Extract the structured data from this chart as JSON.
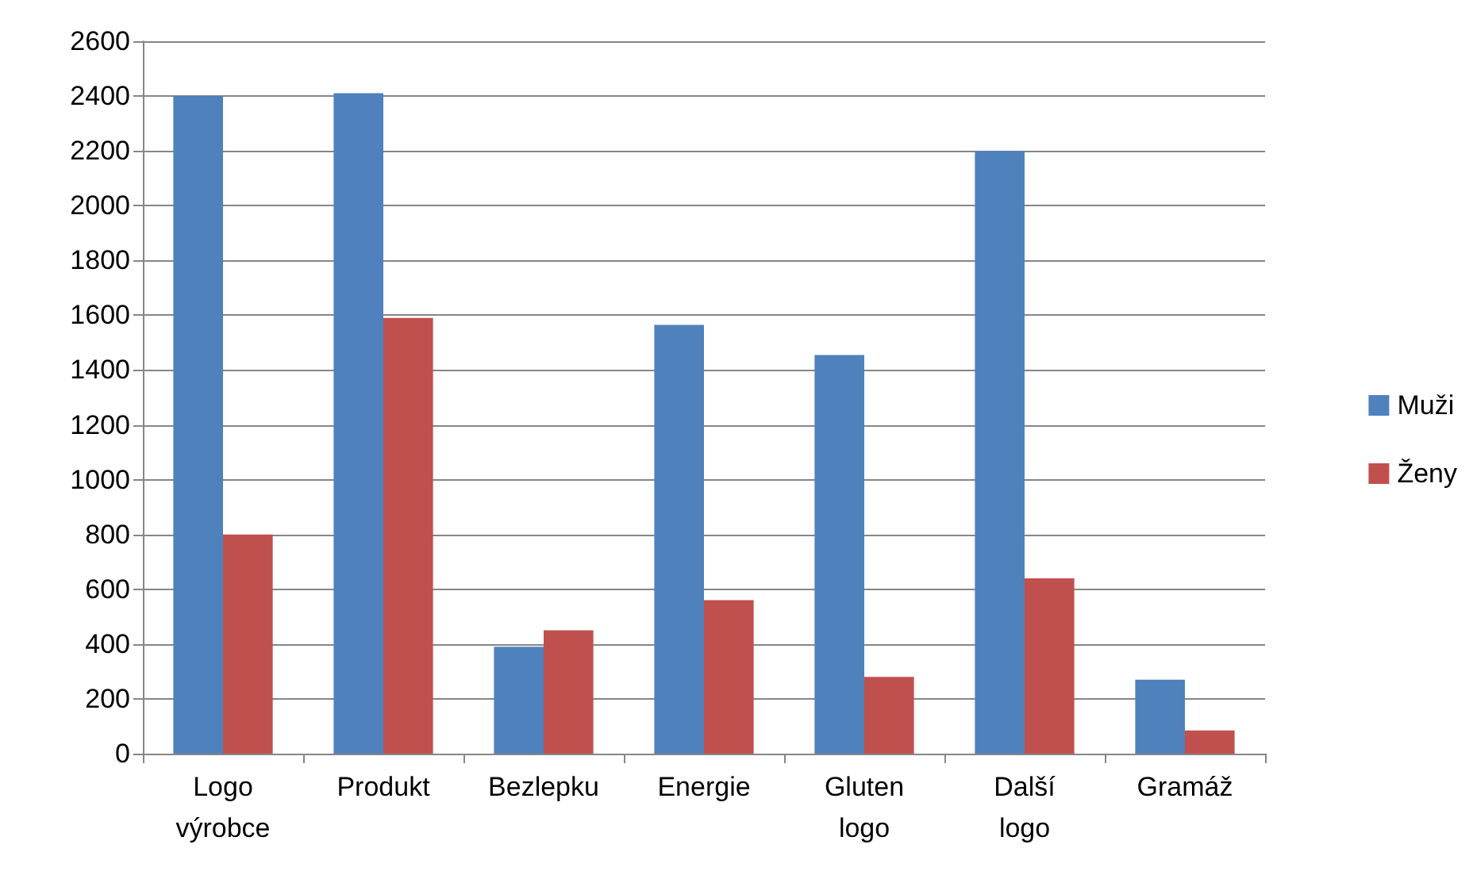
{
  "chart_data": {
    "type": "bar",
    "categories": [
      "Logo výrobce",
      "Produkt",
      "Bezlepku",
      "Energie",
      "Gluten logo",
      "Další logo",
      "Gramáž"
    ],
    "series": [
      {
        "name": "Muži",
        "color": "#4f81bd",
        "values": [
          2400,
          2410,
          390,
          1565,
          1455,
          2200,
          270
        ]
      },
      {
        "name": "Ženy",
        "color": "#c0504d",
        "values": [
          800,
          1590,
          450,
          560,
          280,
          640,
          85
        ]
      }
    ],
    "ylim": [
      0,
      2600
    ],
    "yticks": [
      0,
      200,
      400,
      600,
      800,
      1000,
      1200,
      1400,
      1600,
      1800,
      2000,
      2200,
      2400,
      2600
    ],
    "grid": "y",
    "legend": "right"
  }
}
